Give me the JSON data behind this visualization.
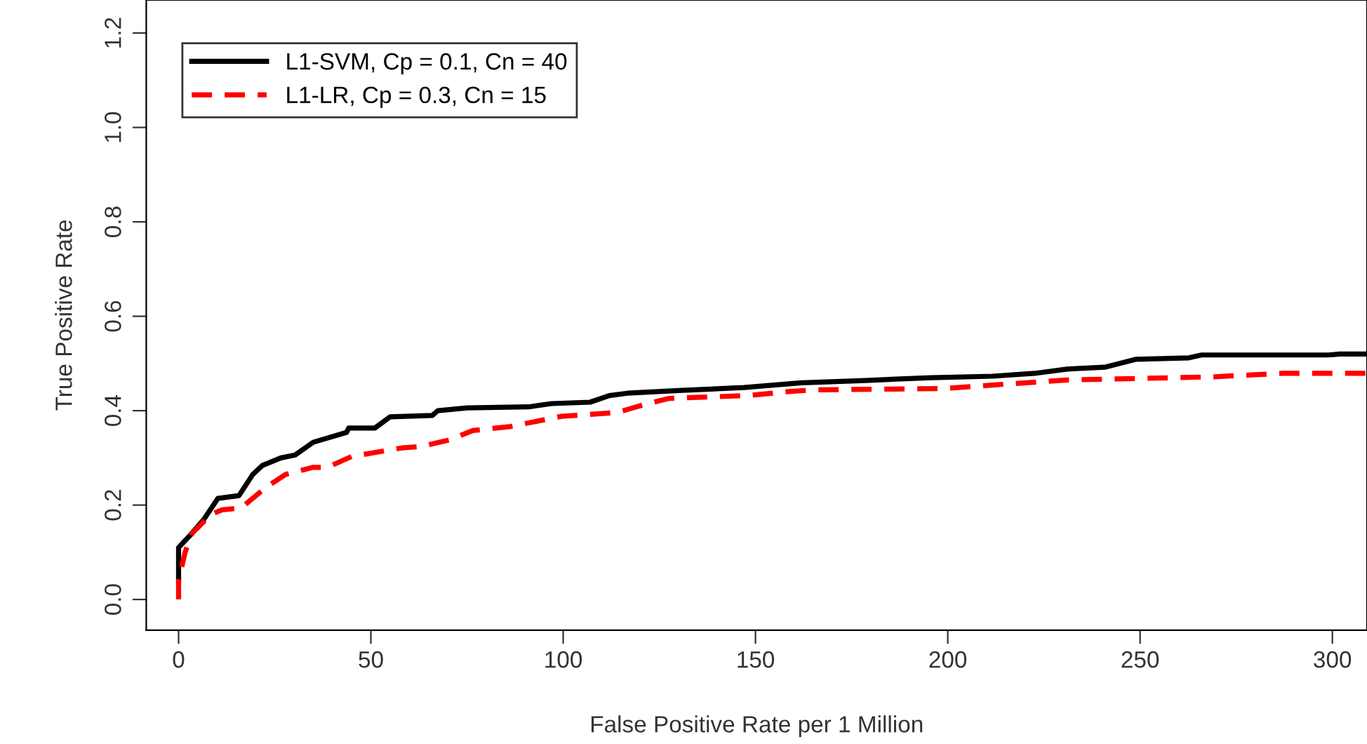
{
  "chart_data": {
    "type": "line",
    "xlabel": "False Positive Rate per 1 Million",
    "ylabel": "True Positive Rate",
    "xlim": [
      -8.4,
      309
    ],
    "ylim": [
      -0.065,
      1.27
    ],
    "xticks": [
      0,
      50,
      100,
      150,
      200,
      250,
      300
    ],
    "yticks": [
      {
        "value": 0,
        "label": "0.0"
      },
      {
        "value": 0.2,
        "label": "0.2"
      },
      {
        "value": 0.4,
        "label": "0.4"
      },
      {
        "value": 0.6,
        "label": "0.6"
      },
      {
        "value": 0.8,
        "label": "0.8"
      },
      {
        "value": 1.0,
        "label": "1.0"
      },
      {
        "value": 1.2,
        "label": "1.2"
      }
    ],
    "grid": false,
    "legend": "top left",
    "series": [
      {
        "name": "L1-SVM, Cp = 0.1, Cn = 40",
        "color": "#000000",
        "line_style": "solid",
        "x": [
          0,
          0,
          2.9,
          6.6,
          10.2,
          15.7,
          19.3,
          21.8,
          26.6,
          30.3,
          35,
          43.7,
          44.2,
          51,
          55,
          66,
          67.4,
          75,
          91,
          97,
          107,
          112,
          116.7,
          131,
          147,
          162,
          178.6,
          195.7,
          211.6,
          222.5,
          231,
          240.8,
          249,
          262.7,
          266,
          299,
          302,
          309
        ],
        "values": [
          0.04,
          0.11,
          0.135,
          0.17,
          0.214,
          0.22,
          0.265,
          0.284,
          0.3,
          0.306,
          0.333,
          0.354,
          0.363,
          0.363,
          0.387,
          0.39,
          0.4,
          0.406,
          0.408,
          0.415,
          0.418,
          0.432,
          0.437,
          0.443,
          0.449,
          0.459,
          0.464,
          0.47,
          0.473,
          0.479,
          0.488,
          0.492,
          0.509,
          0.512,
          0.518,
          0.518,
          0.52,
          0.52
        ]
      },
      {
        "name": "L1-LR, Cp = 0.3, Cn = 15",
        "color": "#ff0000",
        "line_style": "dashed",
        "x": [
          0,
          0,
          1.7,
          3.5,
          8.4,
          11.3,
          16.3,
          22.3,
          27.8,
          35,
          38.7,
          45,
          58,
          63,
          70.4,
          76.5,
          86,
          93.4,
          99.6,
          114,
          121.5,
          127.6,
          148,
          158,
          165,
          199,
          212.8,
          231,
          260,
          270,
          287,
          309
        ],
        "values": [
          0.0,
          0.04,
          0.1,
          0.14,
          0.18,
          0.19,
          0.194,
          0.235,
          0.265,
          0.28,
          0.28,
          0.303,
          0.321,
          0.324,
          0.338,
          0.358,
          0.366,
          0.378,
          0.388,
          0.396,
          0.414,
          0.426,
          0.432,
          0.44,
          0.444,
          0.447,
          0.455,
          0.465,
          0.47,
          0.472,
          0.479,
          0.479
        ]
      }
    ]
  }
}
